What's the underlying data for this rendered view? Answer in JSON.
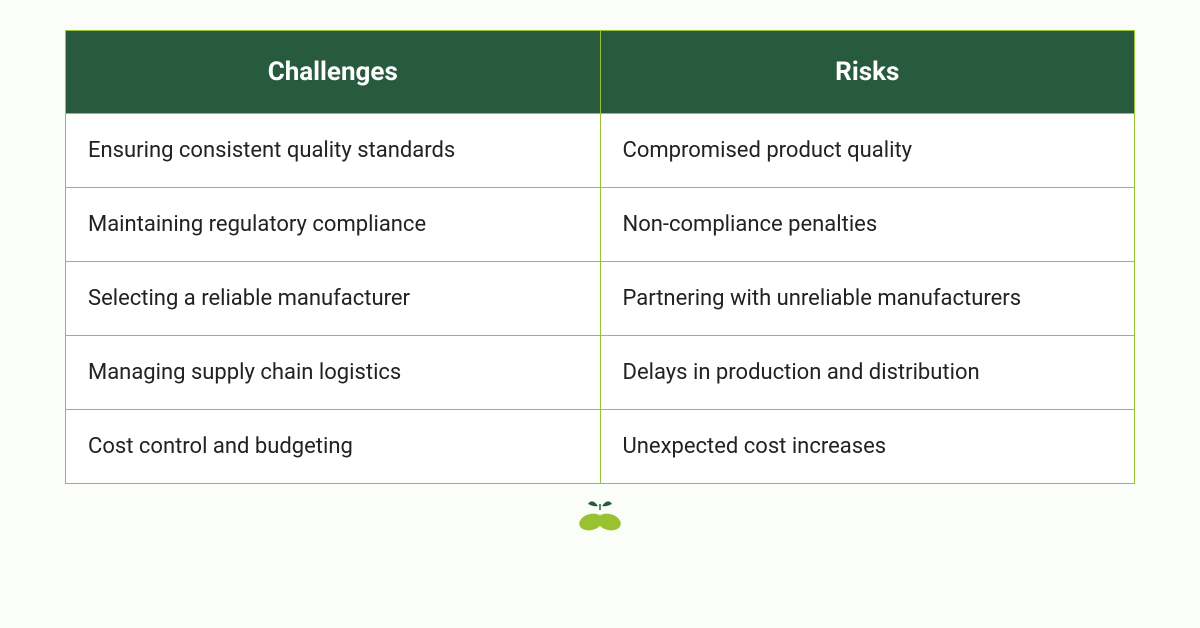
{
  "table": {
    "type": "table",
    "columns": [
      "Challenges",
      "Risks"
    ],
    "rows": [
      [
        "Ensuring consistent quality standards",
        "Compromised product quality"
      ],
      [
        "Maintaining regulatory compliance",
        "Non-compliance penalties"
      ],
      [
        "Selecting a reliable manufacturer",
        "Partnering with unreliable manufacturers"
      ],
      [
        "Managing supply chain logistics",
        "Delays in production and distribution"
      ],
      [
        "Cost control and budgeting",
        "Unexpected cost increases"
      ]
    ],
    "header_bg": "#285b3e",
    "header_text_color": "#ffffff",
    "header_fontsize": 26,
    "cell_bg": "#ffffff",
    "cell_text_color": "#222222",
    "cell_fontsize": 22,
    "border_color": "#99c232",
    "border_width": 1.5,
    "column_widths": [
      "50%",
      "50%"
    ]
  },
  "logo": {
    "capsule_color": "#99c232",
    "leaf_color": "#285b3e"
  },
  "background_color": "#fbfdf8"
}
